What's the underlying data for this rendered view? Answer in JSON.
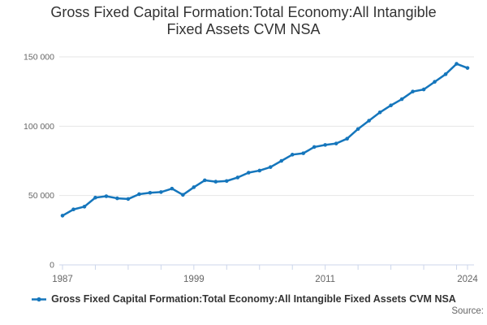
{
  "title_lines": [
    "Gross Fixed Capital Formation:Total Economy:All Intangible",
    "Fixed Assets CVM NSA"
  ],
  "legend": {
    "label": "Gross Fixed Capital Formation:Total Economy:All Intangible Fixed Assets CVM NSA",
    "marker_icon": "line-dot-marker-icon"
  },
  "source": {
    "label": "Source:"
  },
  "colors": {
    "line": "#1576bc",
    "grid": "#e6e6e6",
    "axis": "#ccd6eb",
    "tick_label": "#666666",
    "title": "#333333",
    "legend_text": "#333333",
    "source_text": "#666666"
  },
  "chart_data": {
    "type": "line",
    "title": "Gross Fixed Capital Formation:Total Economy:All Intangible Fixed Assets CVM NSA",
    "x": [
      1987,
      1988,
      1989,
      1990,
      1991,
      1992,
      1993,
      1994,
      1995,
      1996,
      1997,
      1998,
      1999,
      2000,
      2001,
      2002,
      2003,
      2004,
      2005,
      2006,
      2007,
      2008,
      2009,
      2010,
      2011,
      2012,
      2013,
      2014,
      2015,
      2016,
      2017,
      2018,
      2019,
      2020,
      2021,
      2022,
      2023,
      2024
    ],
    "values": [
      35500,
      40000,
      42000,
      48500,
      49500,
      48000,
      47500,
      51000,
      52000,
      52500,
      55000,
      50500,
      56000,
      61000,
      60000,
      60500,
      63000,
      66500,
      68000,
      70500,
      75000,
      79500,
      80500,
      85000,
      86500,
      87500,
      91000,
      98000,
      104000,
      110000,
      115000,
      119500,
      125000,
      126500,
      132000,
      137500,
      145000,
      142000
    ],
    "xlim": [
      1987,
      2024
    ],
    "ylim": [
      0,
      150000
    ],
    "y_ticks": [
      {
        "value": 0,
        "label": "0"
      },
      {
        "value": 50000,
        "label": "50 000"
      },
      {
        "value": 100000,
        "label": "100 000"
      },
      {
        "value": 150000,
        "label": "150 000"
      }
    ],
    "x_tick_labels": [
      {
        "value": 1987,
        "label": "1987"
      },
      {
        "value": 1999,
        "label": "1999"
      },
      {
        "value": 2011,
        "label": "2011"
      },
      {
        "value": 2024,
        "label": "2024"
      }
    ],
    "x_minor_tick_interval_years": 3,
    "grid": "horizontal-only",
    "legend_position": "bottom",
    "marker": "circle"
  }
}
